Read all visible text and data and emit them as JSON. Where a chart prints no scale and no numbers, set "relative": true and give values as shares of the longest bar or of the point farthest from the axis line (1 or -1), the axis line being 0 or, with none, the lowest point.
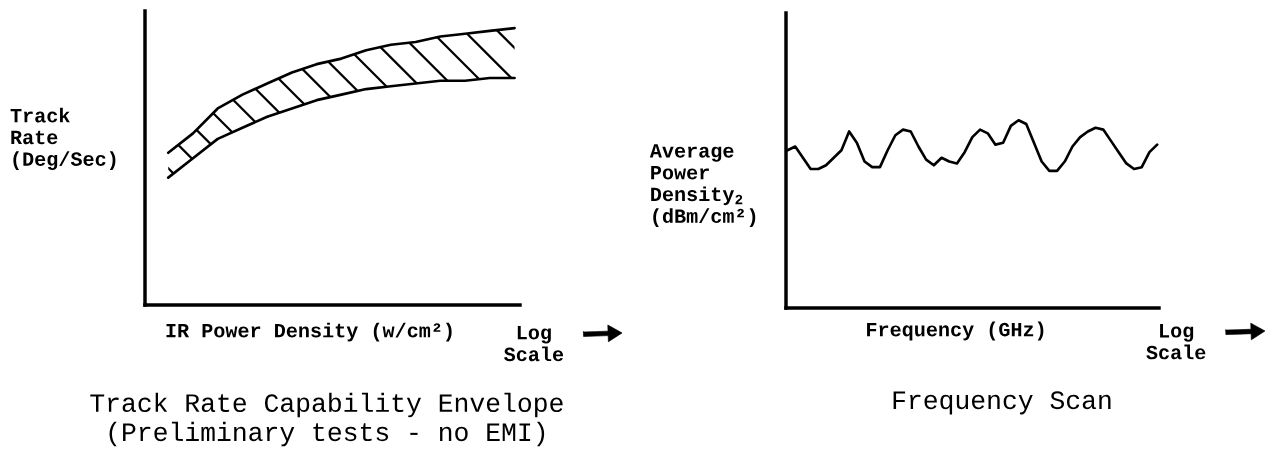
{
  "chart_data": [
    {
      "type": "line",
      "title": "Track Rate Capability Envelope",
      "subtitle": "(Preliminary tests - no EMI)",
      "xlabel": "IR Power Density (w/cm²)",
      "ylabel": "Track\nRate\n(Deg/Sec)",
      "annotations": [
        "Log\nScale"
      ],
      "relative": true,
      "categories": [
        null,
        null,
        null,
        null,
        null,
        null,
        null,
        null,
        null,
        null,
        null,
        null,
        null,
        null,
        null
      ],
      "series": [
        {
          "color": "#000000",
          "values": [
            0.46,
            0.53,
            0.6,
            0.64,
            0.68,
            0.71,
            0.74,
            0.76,
            0.78,
            0.79,
            0.8,
            0.81,
            0.81,
            0.82,
            0.82
          ]
        },
        {
          "color": "#000000",
          "values": [
            0.55,
            0.62,
            0.71,
            0.76,
            0.8,
            0.84,
            0.87,
            0.89,
            0.92,
            0.94,
            0.95,
            0.97,
            0.98,
            0.99,
            1.0
          ],
          "lower": [
            0.46,
            0.53,
            0.6,
            0.64,
            0.68,
            0.71,
            0.74,
            0.76,
            0.78,
            0.79,
            0.8,
            0.81,
            0.81,
            0.82,
            0.82
          ],
          "upper": [
            0.55,
            0.62,
            0.71,
            0.76,
            0.8,
            0.84,
            0.87,
            0.89,
            0.92,
            0.94,
            0.95,
            0.97,
            0.98,
            0.99,
            1.0
          ]
        }
      ]
    },
    {
      "type": "line",
      "title": "Frequency Scan",
      "xlabel": "Frequency (GHz)",
      "ylabel": "Average\nPower\nDensity$_{2}$\n(dBm/cm²)",
      "annotations": [
        "Log\nScale"
      ],
      "relative": true,
      "categories": [
        null,
        null,
        null,
        null,
        null,
        null,
        null,
        null,
        null,
        null,
        null,
        null,
        null,
        null,
        null,
        null,
        null,
        null,
        null,
        null,
        null,
        null,
        null,
        null,
        null,
        null,
        null,
        null,
        null,
        null,
        null,
        null,
        null,
        null,
        null,
        null,
        null,
        null,
        null,
        null,
        null,
        null,
        null,
        null,
        null,
        null,
        null,
        null,
        null
      ],
      "series": [
        {
          "color": "#000000",
          "values": [
            0.84,
            0.86,
            0.8,
            0.74,
            0.74,
            0.76,
            0.8,
            0.84,
            0.94,
            0.88,
            0.78,
            0.75,
            0.75,
            0.84,
            0.92,
            0.95,
            0.94,
            0.86,
            0.79,
            0.76,
            0.8,
            0.78,
            0.77,
            0.83,
            0.91,
            0.95,
            0.93,
            0.87,
            0.88,
            0.97,
            1.0,
            0.98,
            0.88,
            0.78,
            0.73,
            0.73,
            0.78,
            0.86,
            0.91,
            0.94,
            0.96,
            0.95,
            0.89,
            0.83,
            0.77,
            0.74,
            0.75,
            0.83,
            0.87
          ]
        }
      ]
    }
  ]
}
